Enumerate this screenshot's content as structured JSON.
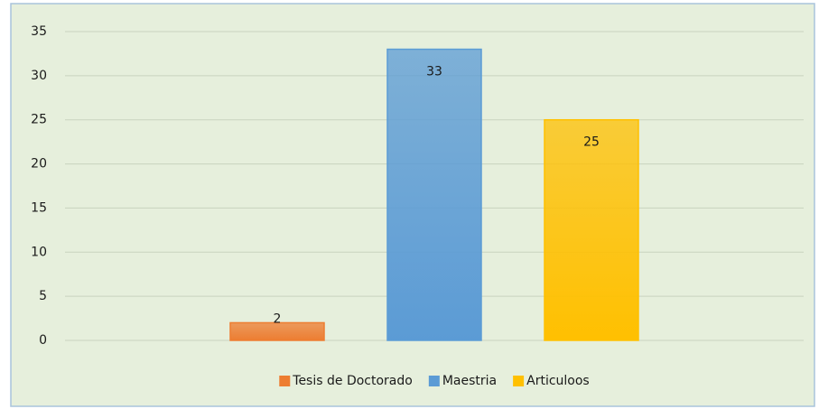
{
  "chart_data": {
    "type": "bar",
    "categories": [
      null
    ],
    "series": [
      {
        "name": "Tesis de Doctorado",
        "color": "#ed7d31",
        "values": [
          2
        ]
      },
      {
        "name": "Maestria",
        "color": "#5b9bd5",
        "values": [
          33
        ]
      },
      {
        "name": "Articuloos",
        "color": "#ffc000",
        "values": [
          25
        ]
      }
    ],
    "ylim": [
      0,
      35
    ],
    "yticks": [
      0,
      5,
      10,
      15,
      20,
      25,
      30,
      35
    ],
    "grid": true,
    "legend": "bottom"
  }
}
